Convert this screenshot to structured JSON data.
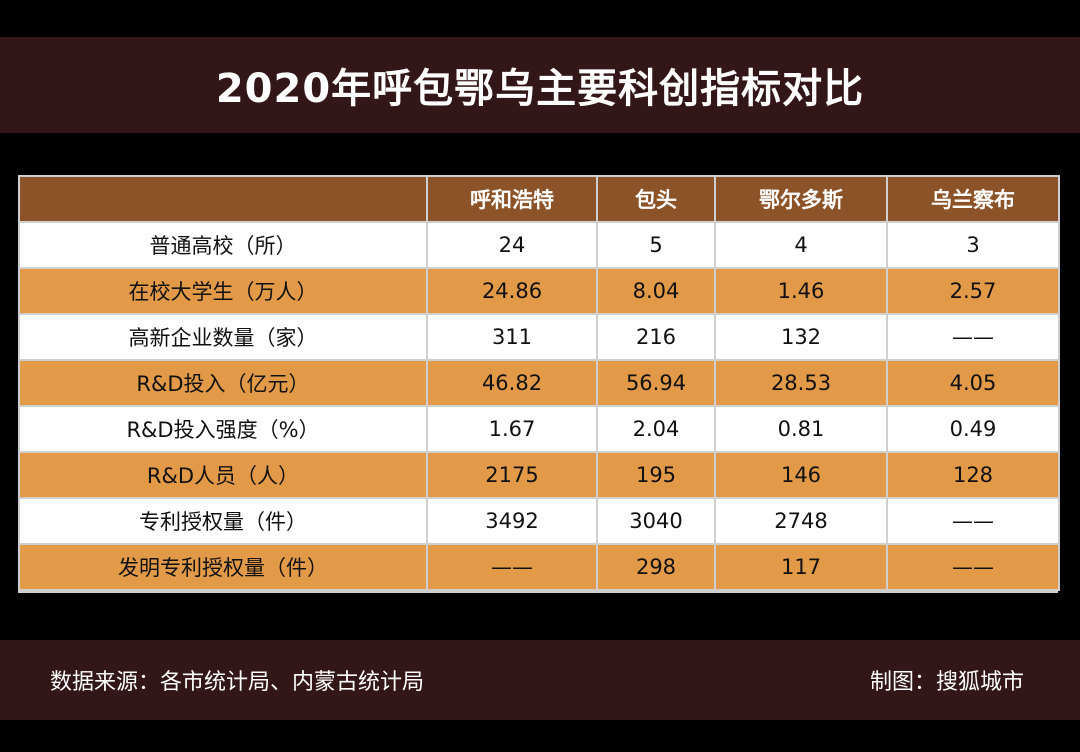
{
  "title": "2020年呼包鄂乌主要科创指标对比",
  "chart_data": {
    "type": "table",
    "columns": [
      "",
      "呼和浩特",
      "包头",
      "鄂尔多斯",
      "乌兰察布"
    ],
    "rows": [
      {
        "label": "普通高校（所）",
        "values": [
          "24",
          "5",
          "4",
          "3"
        ]
      },
      {
        "label": "在校大学生（万人）",
        "values": [
          "24.86",
          "8.04",
          "1.46",
          "2.57"
        ]
      },
      {
        "label": "高新企业数量（家）",
        "values": [
          "311",
          "216",
          "132",
          "——"
        ]
      },
      {
        "label": "R&D投入（亿元）",
        "values": [
          "46.82",
          "56.94",
          "28.53",
          "4.05"
        ]
      },
      {
        "label": "R&D投入强度（%）",
        "values": [
          "1.67",
          "2.04",
          "0.81",
          "0.49"
        ]
      },
      {
        "label": "R&D人员（人）",
        "values": [
          "2175",
          "195",
          "146",
          "128"
        ]
      },
      {
        "label": "专利授权量（件）",
        "values": [
          "3492",
          "3040",
          "2748",
          "——"
        ]
      },
      {
        "label": "发明专利授权量（件）",
        "values": [
          "——",
          "298",
          "117",
          "——"
        ]
      }
    ]
  },
  "footer": {
    "source": "数据来源：各市统计局、内蒙古统计局",
    "credit": "制图：搜狐城市"
  },
  "colors": {
    "band": "#331718",
    "header": "#8c5328",
    "row_alt": "#e39a48",
    "row": "#ffffff"
  }
}
